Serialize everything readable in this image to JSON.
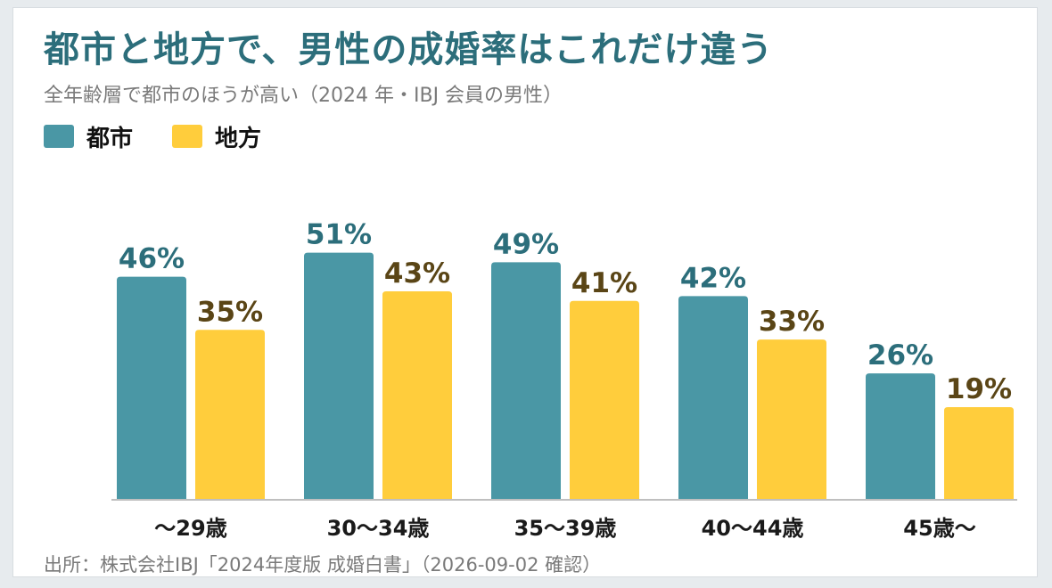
{
  "header": {
    "title": "都市と地方で、男性の成婚率はこれだけ違う",
    "subtitle": "全年齢層で都市のほうが高い（2024 年・IBJ 会員の男性）"
  },
  "footer": {
    "source": "出所：株式会社IBJ「2024年度版 成婚白書」（2026-09-02 確認）"
  },
  "colors": {
    "title": "#2c6e7b",
    "urban": "#4a97a5",
    "rural": "#ffcd3c",
    "urban_label": "#2c6e7b",
    "rural_label": "#5a4516",
    "axis": "#bfbfbf"
  },
  "chart_data": {
    "type": "bar",
    "categories": [
      "〜29歳",
      "30〜34歳",
      "35〜39歳",
      "40〜44歳",
      "45歳〜"
    ],
    "series": [
      {
        "name": "都市",
        "values": [
          46,
          51,
          49,
          42,
          26
        ],
        "labels": [
          "46%",
          "51%",
          "49%",
          "42%",
          "26%"
        ]
      },
      {
        "name": "地方",
        "values": [
          35,
          43,
          41,
          33,
          19
        ],
        "labels": [
          "35%",
          "43%",
          "41%",
          "33%",
          "19%"
        ]
      }
    ],
    "ylim": [
      0,
      55
    ],
    "grid": false,
    "legend_position": "top-left",
    "title": "都市と地方で、男性の成婚率はこれだけ違う",
    "xlabel": "",
    "ylabel": ""
  }
}
